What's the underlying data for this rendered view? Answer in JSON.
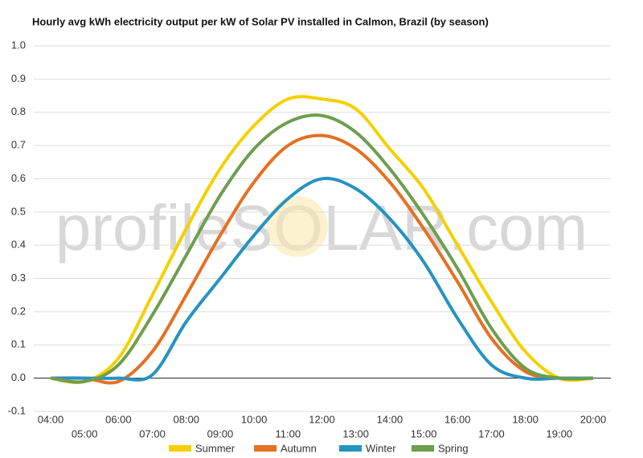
{
  "chart_data": {
    "type": "line",
    "title": "Hourly avg kWh electricity output per kW of Solar PV installed in Calmon, Brazil (by season)",
    "watermark": "profileSOLAR.com",
    "categories": [
      "04:00",
      "05:00",
      "06:00",
      "07:00",
      "08:00",
      "09:00",
      "10:00",
      "11:00",
      "12:00",
      "13:00",
      "14:00",
      "15:00",
      "16:00",
      "17:00",
      "18:00",
      "19:00",
      "20:00"
    ],
    "series": [
      {
        "name": "Summer",
        "color": "#f5d000",
        "values": [
          0,
          -0.01,
          0.06,
          0.25,
          0.45,
          0.63,
          0.76,
          0.84,
          0.84,
          0.81,
          0.69,
          0.57,
          0.4,
          0.23,
          0.08,
          0.0,
          0.0
        ]
      },
      {
        "name": "Autumn",
        "color": "#e57022",
        "values": [
          0,
          0,
          -0.01,
          0.08,
          0.25,
          0.43,
          0.59,
          0.7,
          0.73,
          0.69,
          0.59,
          0.45,
          0.29,
          0.12,
          0.02,
          0,
          0
        ]
      },
      {
        "name": "Winter",
        "color": "#2593c2",
        "values": [
          0,
          0,
          0,
          0.01,
          0.17,
          0.3,
          0.43,
          0.54,
          0.6,
          0.57,
          0.48,
          0.35,
          0.18,
          0.04,
          0,
          0,
          0
        ]
      },
      {
        "name": "Spring",
        "color": "#6e9e4e",
        "values": [
          0,
          -0.01,
          0.04,
          0.19,
          0.37,
          0.55,
          0.69,
          0.77,
          0.79,
          0.74,
          0.63,
          0.49,
          0.33,
          0.15,
          0.03,
          0,
          0
        ]
      }
    ],
    "ylim": [
      -0.1,
      1.0
    ],
    "yticks": [
      -0.1,
      {
        "value": 0,
        "label": "0.0"
      },
      0.1,
      0.2,
      0.3,
      0.4,
      0.5,
      0.6,
      0.7,
      0.8,
      0.9,
      {
        "value": 1,
        "label": "1.0"
      }
    ],
    "grid": true
  }
}
